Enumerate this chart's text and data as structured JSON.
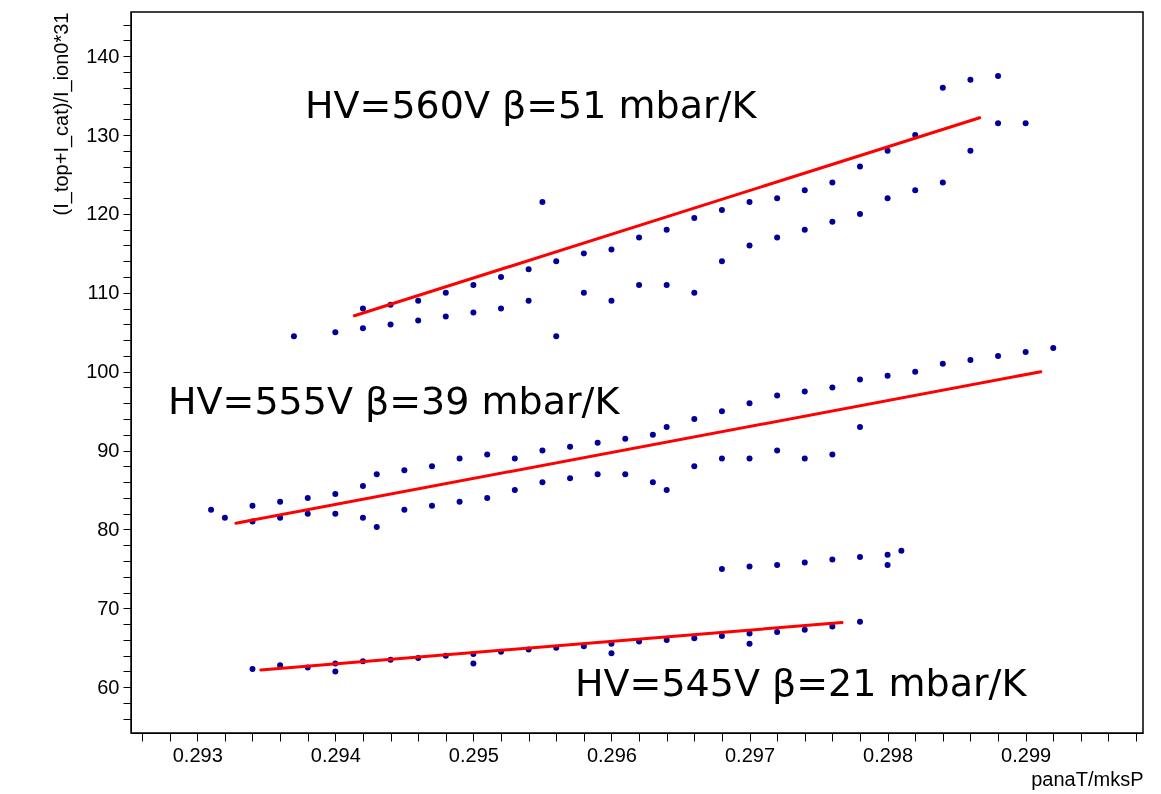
{
  "chart_data": {
    "type": "scatter",
    "xlabel": "panaT/mksP",
    "ylabel": "(I_top+I_cat)/I_ion0*31",
    "xlim": [
      0.29252,
      0.29985
    ],
    "ylim": [
      54.2,
      145.6
    ],
    "xticks": [
      {
        "value": 0.2926,
        "label": null
      },
      {
        "value": 0.2928,
        "label": null
      },
      0.293,
      {
        "value": 0.2932,
        "label": null
      },
      {
        "value": 0.2934,
        "label": null
      },
      {
        "value": 0.2936,
        "label": null
      },
      {
        "value": 0.2938,
        "label": null
      },
      0.294,
      {
        "value": 0.2942,
        "label": null
      },
      {
        "value": 0.2944,
        "label": null
      },
      {
        "value": 0.2946,
        "label": null
      },
      {
        "value": 0.2948,
        "label": null
      },
      0.295,
      {
        "value": 0.2952,
        "label": null
      },
      {
        "value": 0.2954,
        "label": null
      },
      {
        "value": 0.2956,
        "label": null
      },
      {
        "value": 0.2958,
        "label": null
      },
      0.296,
      {
        "value": 0.2962,
        "label": null
      },
      {
        "value": 0.2964,
        "label": null
      },
      {
        "value": 0.2966,
        "label": null
      },
      {
        "value": 0.2968,
        "label": null
      },
      0.297,
      {
        "value": 0.2972,
        "label": null
      },
      {
        "value": 0.2974,
        "label": null
      },
      {
        "value": 0.2976,
        "label": null
      },
      {
        "value": 0.2978,
        "label": null
      },
      0.298,
      {
        "value": 0.2982,
        "label": null
      },
      {
        "value": 0.2984,
        "label": null
      },
      {
        "value": 0.2986,
        "label": null
      },
      {
        "value": 0.2988,
        "label": null
      },
      0.299,
      {
        "value": 0.2992,
        "label": null
      },
      {
        "value": 0.2994,
        "label": null
      },
      {
        "value": 0.2996,
        "label": null
      },
      {
        "value": 0.2998,
        "label": null
      }
    ],
    "yticks": [
      {
        "value": 56,
        "label": null
      },
      {
        "value": 58,
        "label": null
      },
      60,
      {
        "value": 62,
        "label": null
      },
      {
        "value": 64,
        "label": null
      },
      {
        "value": 66,
        "label": null
      },
      {
        "value": 68,
        "label": null
      },
      70,
      {
        "value": 72,
        "label": null
      },
      {
        "value": 74,
        "label": null
      },
      {
        "value": 76,
        "label": null
      },
      {
        "value": 78,
        "label": null
      },
      80,
      {
        "value": 82,
        "label": null
      },
      {
        "value": 84,
        "label": null
      },
      {
        "value": 86,
        "label": null
      },
      {
        "value": 88,
        "label": null
      },
      90,
      {
        "value": 92,
        "label": null
      },
      {
        "value": 94,
        "label": null
      },
      {
        "value": 96,
        "label": null
      },
      {
        "value": 98,
        "label": null
      },
      100,
      {
        "value": 102,
        "label": null
      },
      {
        "value": 104,
        "label": null
      },
      {
        "value": 106,
        "label": null
      },
      {
        "value": 108,
        "label": null
      },
      110,
      {
        "value": 112,
        "label": null
      },
      {
        "value": 114,
        "label": null
      },
      {
        "value": 116,
        "label": null
      },
      {
        "value": 118,
        "label": null
      },
      120,
      {
        "value": 122,
        "label": null
      },
      {
        "value": 124,
        "label": null
      },
      {
        "value": 126,
        "label": null
      },
      {
        "value": 128,
        "label": null
      },
      130,
      {
        "value": 132,
        "label": null
      },
      {
        "value": 134,
        "label": null
      },
      {
        "value": 136,
        "label": null
      },
      {
        "value": 138,
        "label": null
      },
      140,
      {
        "value": 142,
        "label": null
      },
      {
        "value": 144,
        "label": null
      }
    ],
    "grid": false,
    "annotations": [
      "HV=560V   β=51 mbar/K",
      "HV=555V   β=39 mbar/K",
      "HV=545V   β=21 mbar/K"
    ],
    "series": [
      {
        "color": "#000099",
        "marker": "circle",
        "x": [
          0.2937,
          0.294,
          0.2942,
          0.2942,
          0.2944,
          0.2944,
          0.2946,
          0.2946,
          0.2948,
          0.2948,
          0.295,
          0.295,
          0.2952,
          0.2952,
          0.2954,
          0.2954,
          0.2955,
          0.2956,
          0.2956,
          0.2958,
          0.2958,
          0.296,
          0.296,
          0.2962,
          0.2962,
          0.2964,
          0.2964,
          0.2966,
          0.2966,
          0.2968,
          0.2968,
          0.297,
          0.297,
          0.2972,
          0.2972,
          0.2974,
          0.2974,
          0.2976,
          0.2976,
          0.2978,
          0.2978,
          0.298,
          0.298,
          0.2982,
          0.2982,
          0.2984,
          0.2984,
          0.2986,
          0.2986,
          0.2988,
          0.2988,
          0.299,
          0.2931,
          0.2932,
          0.2934,
          0.2934,
          0.2936,
          0.2936,
          0.2938,
          0.2938,
          0.294,
          0.294,
          0.2942,
          0.2942,
          0.2943,
          0.2943,
          0.2945,
          0.2945,
          0.2947,
          0.2947,
          0.2949,
          0.2949,
          0.2951,
          0.2951,
          0.2953,
          0.2953,
          0.2955,
          0.2955,
          0.2957,
          0.2957,
          0.2959,
          0.2959,
          0.2961,
          0.2961,
          0.2963,
          0.2963,
          0.2964,
          0.2964,
          0.2966,
          0.2966,
          0.2968,
          0.2968,
          0.297,
          0.297,
          0.2972,
          0.2972,
          0.2974,
          0.2974,
          0.2976,
          0.2976,
          0.2978,
          0.2978,
          0.298,
          0.2982,
          0.2984,
          0.2986,
          0.2988,
          0.299,
          0.2992,
          0.2934,
          0.2936,
          0.2938,
          0.294,
          0.2942,
          0.2944,
          0.2946,
          0.2948,
          0.295,
          0.2952,
          0.2954,
          0.2956,
          0.2958,
          0.296,
          0.2962,
          0.2964,
          0.2966,
          0.2968,
          0.297,
          0.2972,
          0.2974,
          0.2976,
          0.2978,
          0.294,
          0.295,
          0.296,
          0.297,
          0.2968,
          0.297,
          0.2972,
          0.2974,
          0.2976,
          0.2978,
          0.298,
          0.2981,
          0.298
        ],
        "values": [
          104.5,
          105,
          108,
          105.5,
          108.5,
          106,
          109,
          106.5,
          110,
          107,
          111,
          107.5,
          112,
          108,
          113,
          109,
          121.5,
          114,
          104.5,
          115,
          110,
          115.5,
          109,
          117,
          111,
          118,
          111,
          119.5,
          110,
          120.5,
          114,
          121.5,
          116,
          122,
          117,
          123,
          118,
          124,
          119,
          126,
          120,
          128,
          122,
          130,
          123,
          136,
          124,
          137,
          128,
          137.5,
          131.5,
          131.5,
          82.5,
          81.5,
          83,
          81,
          83.5,
          81.5,
          84,
          82,
          84.5,
          82,
          85.5,
          81.5,
          87,
          80.3,
          87.5,
          82.5,
          88,
          83,
          89,
          83.5,
          89.5,
          84,
          89,
          85,
          90,
          86,
          90.5,
          86.5,
          91,
          87,
          91.5,
          87,
          92,
          86,
          93,
          85,
          94,
          88,
          95,
          89,
          96,
          89,
          97,
          90,
          97.5,
          89,
          98,
          89.5,
          99,
          93,
          99.5,
          100,
          101,
          101.5,
          102,
          102.5,
          103,
          62.3,
          62.8,
          62.5,
          63,
          63.3,
          63.5,
          63.7,
          64,
          64.2,
          64.5,
          64.8,
          65,
          65.2,
          65.5,
          65.8,
          66,
          66.2,
          66.5,
          66.8,
          67,
          67.3,
          67.7,
          68.3,
          62,
          63,
          64.3,
          65.5,
          75,
          75.3,
          75.5,
          75.8,
          76.2,
          76.5,
          76.8,
          77.3,
          75.5
        ]
      },
      {
        "type": "line",
        "color": "#ff0000",
        "x": [
          0.294138,
          0.298667
        ],
        "values": [
          107.1,
          132.2
        ]
      },
      {
        "type": "line",
        "color": "#ff0000",
        "x": [
          0.29328,
          0.29911
        ],
        "values": [
          80.8,
          100.0
        ]
      },
      {
        "type": "line",
        "color": "#ff0000",
        "x": [
          0.29346,
          0.29767
        ],
        "values": [
          62.2,
          68.2
        ]
      }
    ]
  }
}
